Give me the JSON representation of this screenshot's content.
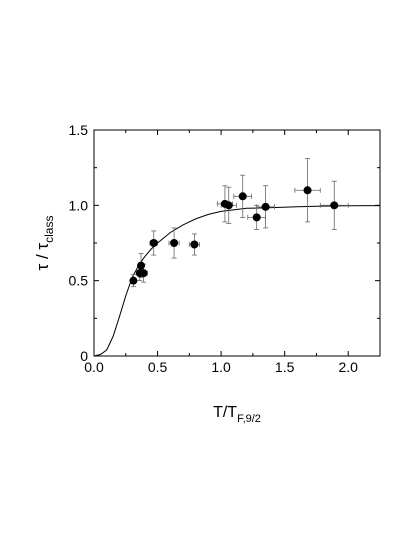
{
  "chart_data": {
    "type": "scatter",
    "xlabel": {
      "main": "T/T",
      "sub": "F,9/2"
    },
    "ylabel": {
      "main": "τ / τ",
      "sub": "class"
    },
    "xlim": [
      0.0,
      2.25
    ],
    "ylim": [
      0.0,
      1.5
    ],
    "x_ticks": [
      {
        "value": 0.0,
        "label": "0.0"
      },
      {
        "value": 0.5,
        "label": "0.5"
      },
      {
        "value": 1.0,
        "label": "1.0"
      },
      {
        "value": 1.5,
        "label": "1.5"
      },
      {
        "value": 2.0,
        "label": "2.0"
      }
    ],
    "y_ticks": [
      {
        "value": 0.0,
        "label": "0"
      },
      {
        "value": 0.5,
        "label": "0.5"
      },
      {
        "value": 1.0,
        "label": "1.0"
      },
      {
        "value": 1.5,
        "label": "1.5"
      }
    ],
    "grid": false,
    "series": [
      {
        "kind": "points-with-errorbars",
        "color": "#000000",
        "points": [
          {
            "x": 0.31,
            "y": 0.5,
            "xerr": 0.02,
            "yerr": 0.04
          },
          {
            "x": 0.36,
            "y": 0.55,
            "xerr": 0.02,
            "yerr": 0.05
          },
          {
            "x": 0.37,
            "y": 0.6,
            "xerr": 0.02,
            "yerr": 0.08
          },
          {
            "x": 0.39,
            "y": 0.55,
            "xerr": 0.03,
            "yerr": 0.06
          },
          {
            "x": 0.47,
            "y": 0.75,
            "xerr": 0.03,
            "yerr": 0.08
          },
          {
            "x": 0.63,
            "y": 0.75,
            "xerr": 0.04,
            "yerr": 0.1
          },
          {
            "x": 0.79,
            "y": 0.74,
            "xerr": 0.04,
            "yerr": 0.07
          },
          {
            "x": 1.03,
            "y": 1.01,
            "xerr": 0.06,
            "yerr": 0.12
          },
          {
            "x": 1.06,
            "y": 1.0,
            "xerr": 0.06,
            "yerr": 0.12
          },
          {
            "x": 1.17,
            "y": 1.06,
            "xerr": 0.07,
            "yerr": 0.14
          },
          {
            "x": 1.28,
            "y": 0.92,
            "xerr": 0.07,
            "yerr": 0.08
          },
          {
            "x": 1.35,
            "y": 0.99,
            "xerr": 0.07,
            "yerr": 0.14
          },
          {
            "x": 1.68,
            "y": 1.1,
            "xerr": 0.1,
            "yerr": 0.21
          },
          {
            "x": 1.89,
            "y": 1.0,
            "xerr": 0.11,
            "yerr": 0.16
          }
        ]
      },
      {
        "kind": "curve",
        "color": "#000000",
        "x": [
          0.0,
          0.05,
          0.1,
          0.15,
          0.2,
          0.25,
          0.3,
          0.35,
          0.4,
          0.45,
          0.5,
          0.6,
          0.7,
          0.8,
          0.9,
          1.0,
          1.2,
          1.4,
          1.6,
          1.8,
          2.0,
          2.25
        ],
        "y": [
          0.0,
          0.01,
          0.04,
          0.13,
          0.26,
          0.4,
          0.52,
          0.6,
          0.66,
          0.71,
          0.75,
          0.82,
          0.87,
          0.91,
          0.94,
          0.96,
          0.98,
          0.985,
          0.99,
          0.995,
          0.997,
          0.998
        ]
      }
    ]
  }
}
